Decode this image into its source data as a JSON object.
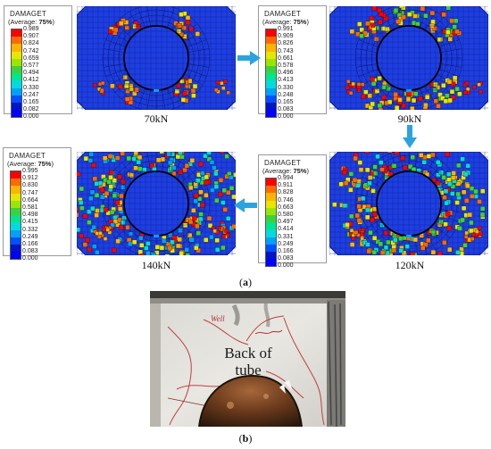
{
  "legend_title": "DAMAGET",
  "legend_subtitle_prefix": "(Average: ",
  "legend_subtitle_value": "75%",
  "legend_subtitle_suffix": ")",
  "colors": [
    "#ff0000",
    "#ff6a00",
    "#ffb400",
    "#e6e600",
    "#9ae600",
    "#3cd23c",
    "#00e68c",
    "#00dcdc",
    "#00a0ff",
    "#0050ff",
    "#0014c8",
    "#0000ff"
  ],
  "legends": [
    {
      "values": [
        "0.989",
        "0.907",
        "0.824",
        "0.742",
        "0.659",
        "0.577",
        "0.494",
        "0.412",
        "0.330",
        "0.247",
        "0.165",
        "0.082",
        "0.000"
      ]
    },
    {
      "values": [
        "0.991",
        "0.909",
        "0.826",
        "0.743",
        "0.661",
        "0.578",
        "0.496",
        "0.413",
        "0.330",
        "0.248",
        "0.165",
        "0.083",
        "0.000"
      ]
    },
    {
      "values": [
        "0.995",
        "0.912",
        "0.830",
        "0.747",
        "0.664",
        "0.581",
        "0.498",
        "0.415",
        "0.332",
        "0.249",
        "0.166",
        "0.083",
        "0.000"
      ]
    },
    {
      "values": [
        "0.994",
        "0.911",
        "0.828",
        "0.746",
        "0.663",
        "0.580",
        "0.497",
        "0.414",
        "0.331",
        "0.249",
        "0.166",
        "0.083",
        "0.000"
      ]
    }
  ],
  "captions": {
    "c70": "70kN",
    "c90": "90kN",
    "c140": "140kN",
    "c120": "120kN"
  },
  "panel_a_open": "(",
  "panel_a_letter": "a",
  "panel_a_close": ")",
  "panel_b_open": "(",
  "panel_b_letter": "b",
  "panel_b_close": ")",
  "photo_text_line1": "Back of",
  "photo_text_line2": "tube",
  "photo_marking": "Well"
}
